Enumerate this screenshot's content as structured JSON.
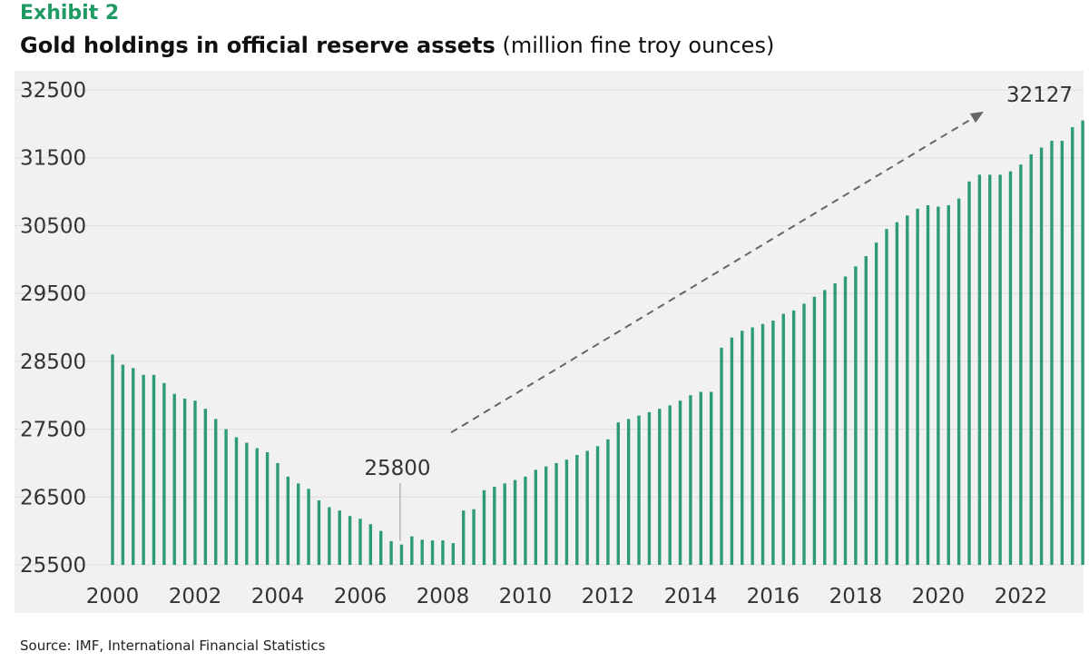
{
  "header": {
    "exhibit": "Exhibit 2",
    "title_bold": "Gold holdings in official reserve assets",
    "title_unit": "(million fine troy ounces)"
  },
  "footer": {
    "source": "Source: IMF, International Financial Statistics"
  },
  "colors": {
    "accent": "#1f9a63",
    "bar": "#2e9b78",
    "grid": "#dddddd",
    "tick": "#333333",
    "arrow": "#666666",
    "background": "#f1f1f1"
  },
  "chart_data": {
    "type": "bar",
    "title": "Gold holdings in official reserve assets",
    "subtitle": "(million fine troy ounces)",
    "xlabel": "",
    "ylabel": "",
    "ylim": [
      25500,
      32500
    ],
    "yticks": [
      25500,
      26500,
      27500,
      28500,
      29500,
      30500,
      31500,
      32500
    ],
    "xticks": [
      2000,
      2002,
      2004,
      2006,
      2008,
      2010,
      2012,
      2014,
      2016,
      2018,
      2020,
      2022
    ],
    "x_start": 2000,
    "x_step": 0.25,
    "grid": true,
    "series": [
      {
        "name": "Gold holdings",
        "frequency": "quarterly",
        "values": [
          28600,
          28450,
          28400,
          28300,
          28300,
          28180,
          28020,
          27950,
          27920,
          27800,
          27650,
          27500,
          27380,
          27300,
          27220,
          27160,
          27000,
          26800,
          26700,
          26620,
          26450,
          26350,
          26300,
          26220,
          26180,
          26100,
          26000,
          25850,
          25800,
          25920,
          25870,
          25860,
          25860,
          25820,
          26300,
          26320,
          26600,
          26650,
          26700,
          26750,
          26800,
          26900,
          26950,
          27000,
          27050,
          27120,
          27180,
          27250,
          27350,
          27600,
          27650,
          27700,
          27750,
          27800,
          27850,
          27920,
          28000,
          28050,
          28050,
          28700,
          28850,
          28950,
          29000,
          29050,
          29100,
          29200,
          29250,
          29350,
          29450,
          29550,
          29650,
          29750,
          29900,
          30050,
          30250,
          30450,
          30550,
          30650,
          30750,
          30800,
          30780,
          30800,
          30900,
          31150,
          31250,
          31250,
          31250,
          31300,
          31400,
          31550,
          31650,
          31750,
          31750,
          31950,
          32050,
          32127
        ]
      }
    ],
    "annotations": [
      {
        "text": "25800",
        "x": 2006.9,
        "value": 25800
      },
      {
        "text": "32127",
        "x": 2023.3,
        "value": 32127
      }
    ],
    "trend_arrow": {
      "from": [
        2008.2,
        27450
      ],
      "to": [
        2021.1,
        32180
      ]
    }
  }
}
